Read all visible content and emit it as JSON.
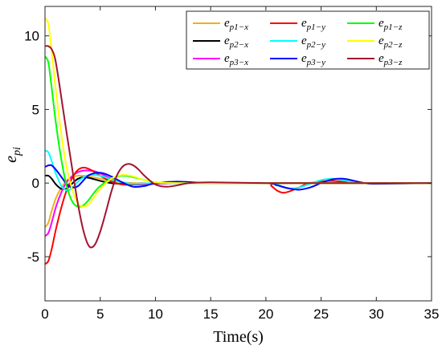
{
  "chart_data": {
    "type": "line",
    "xlabel": "Time(s)",
    "ylabel": "e",
    "ylabel_sub": "pi",
    "xlim": [
      0,
      35
    ],
    "ylim": [
      -8,
      12
    ],
    "xticks": [
      0,
      5,
      10,
      15,
      20,
      25,
      30,
      35
    ],
    "yticks": [
      {
        "value": 10,
        "label": "10"
      },
      {
        "value": 5,
        "label": "5"
      },
      {
        "value": 0,
        "label": "0"
      },
      {
        "value": -5,
        "label": "-5"
      }
    ],
    "grid": false,
    "legend_position": "top-right",
    "series": [
      {
        "name": "e",
        "sub": "p1−x",
        "color": "#EDB120",
        "x": [
          0,
          0.3,
          0.6,
          1,
          1.5,
          2,
          2.5,
          3,
          3.5,
          4,
          5,
          6,
          7,
          8,
          10,
          12,
          15,
          20,
          25,
          30,
          35
        ],
        "y": [
          -3,
          -2.7,
          -1.9,
          -1.0,
          -0.3,
          0.2,
          0.4,
          0.5,
          0.5,
          0.45,
          0.3,
          0.15,
          0.05,
          0,
          -0.05,
          0,
          0,
          0,
          0,
          0,
          0
        ]
      },
      {
        "name": "e",
        "sub": "p2−x",
        "color": "#000000",
        "x": [
          0,
          0.3,
          0.6,
          1,
          1.5,
          2,
          2.5,
          3,
          3.5,
          4,
          5,
          6,
          7,
          8,
          10,
          12,
          15,
          20,
          25,
          30,
          35
        ],
        "y": [
          0.5,
          0.5,
          0.3,
          -0.1,
          -0.4,
          -0.35,
          0,
          0.3,
          0.4,
          0.35,
          0.15,
          0,
          -0.05,
          -0.05,
          0,
          0,
          0,
          0,
          0,
          0,
          0
        ]
      },
      {
        "name": "e",
        "sub": "p3−x",
        "color": "#FF00FF",
        "x": [
          0,
          0.3,
          0.6,
          1,
          1.5,
          2,
          2.5,
          3,
          3.5,
          4,
          4.5,
          5,
          6,
          7,
          8,
          9,
          10,
          12,
          15,
          20,
          25,
          30,
          35
        ],
        "y": [
          -3.6,
          -3.4,
          -2.7,
          -1.6,
          -0.6,
          0.1,
          0.5,
          0.75,
          0.85,
          0.85,
          0.8,
          0.65,
          0.3,
          0.05,
          -0.1,
          -0.1,
          -0.05,
          0,
          0,
          0,
          0,
          0,
          0
        ]
      },
      {
        "name": "e",
        "sub": "p1−y",
        "color": "#FF0000",
        "x": [
          0,
          0.3,
          0.6,
          1,
          1.5,
          2,
          2.5,
          3,
          3.5,
          4,
          4.5,
          5,
          6,
          7,
          8,
          10,
          12,
          15,
          20,
          20.5,
          21,
          21.5,
          22,
          23,
          24,
          26,
          28,
          30,
          35
        ],
        "y": [
          -5.5,
          -5.3,
          -4.5,
          -3.1,
          -1.6,
          -0.4,
          0.4,
          0.9,
          1.05,
          0.95,
          0.75,
          0.5,
          0.1,
          -0.1,
          -0.1,
          0,
          0,
          0,
          0,
          -0.2,
          -0.5,
          -0.65,
          -0.6,
          -0.3,
          0,
          0.15,
          0,
          0,
          0
        ]
      },
      {
        "name": "e",
        "sub": "p2−y",
        "color": "#00FFFF",
        "x": [
          0,
          0.3,
          0.6,
          1,
          1.5,
          2,
          2.5,
          3,
          3.5,
          4,
          5,
          6,
          7,
          8,
          10,
          12,
          15,
          20,
          21,
          22,
          23,
          24,
          25,
          26,
          27,
          28,
          30,
          35
        ],
        "y": [
          2.2,
          2.1,
          1.5,
          0.6,
          -0.2,
          -0.5,
          -0.3,
          0.1,
          0.4,
          0.55,
          0.5,
          0.25,
          0.05,
          -0.05,
          0,
          0,
          0,
          0,
          -0.1,
          -0.35,
          -0.3,
          -0.05,
          0.2,
          0.3,
          0.2,
          0.05,
          0,
          0
        ]
      },
      {
        "name": "e",
        "sub": "p3−y",
        "color": "#0000FF",
        "x": [
          0,
          0.3,
          0.6,
          1,
          1.5,
          2,
          2.5,
          3,
          3.5,
          4,
          5,
          6,
          7,
          8,
          9,
          10,
          12,
          15,
          20,
          21,
          22,
          23,
          24,
          25,
          26,
          27,
          28,
          29,
          30,
          35
        ],
        "y": [
          1.1,
          1.2,
          1.2,
          0.9,
          0.4,
          -0.1,
          -0.3,
          -0.2,
          0.2,
          0.55,
          0.7,
          0.45,
          0.05,
          -0.25,
          -0.2,
          0,
          0.1,
          0,
          0,
          -0.15,
          -0.35,
          -0.45,
          -0.3,
          0,
          0.25,
          0.3,
          0.15,
          0,
          -0.05,
          0
        ]
      },
      {
        "name": "e",
        "sub": "p1−z",
        "color": "#00FF00",
        "x": [
          0,
          0.3,
          0.6,
          1,
          1.5,
          2,
          2.5,
          3,
          3.5,
          4,
          4.5,
          5,
          6,
          7,
          8,
          10,
          12,
          15,
          20,
          25,
          30,
          35
        ],
        "y": [
          8.6,
          8.2,
          6.5,
          4.0,
          1.5,
          -0.3,
          -1.3,
          -1.6,
          -1.5,
          -1.1,
          -0.6,
          -0.2,
          0.3,
          0.5,
          0.4,
          0.05,
          0,
          0,
          0,
          0,
          0,
          0
        ]
      },
      {
        "name": "e",
        "sub": "p2−z",
        "color": "#FFFF00",
        "x": [
          0,
          0.3,
          0.6,
          1,
          1.5,
          2,
          2.5,
          3,
          3.5,
          4,
          4.5,
          5,
          6,
          7,
          8,
          9,
          10,
          12,
          15,
          20,
          25,
          30,
          35
        ],
        "y": [
          11.2,
          10.8,
          9.0,
          6.2,
          3.2,
          0.9,
          -0.5,
          -1.4,
          -1.6,
          -1.4,
          -0.9,
          -0.4,
          0.3,
          0.55,
          0.45,
          0.2,
          0.05,
          0,
          0,
          0,
          0,
          0,
          0
        ]
      },
      {
        "name": "e",
        "sub": "p3−z",
        "color": "#A2142F",
        "x": [
          0,
          0.3,
          0.6,
          0.9,
          1.2,
          1.5,
          2,
          2.5,
          3,
          3.5,
          4,
          4.5,
          5,
          5.5,
          6,
          6.5,
          7,
          7.5,
          8,
          8.5,
          9,
          10,
          11,
          12,
          13,
          15,
          20,
          25,
          30,
          35
        ],
        "y": [
          9.3,
          9.3,
          9.1,
          8.5,
          7.2,
          5.7,
          3.2,
          0.8,
          -1.5,
          -3.3,
          -4.3,
          -4.2,
          -3.3,
          -2.0,
          -0.6,
          0.5,
          1.1,
          1.3,
          1.2,
          0.9,
          0.5,
          -0.1,
          -0.25,
          -0.15,
          0,
          0.05,
          0,
          0,
          0,
          0
        ]
      }
    ]
  }
}
